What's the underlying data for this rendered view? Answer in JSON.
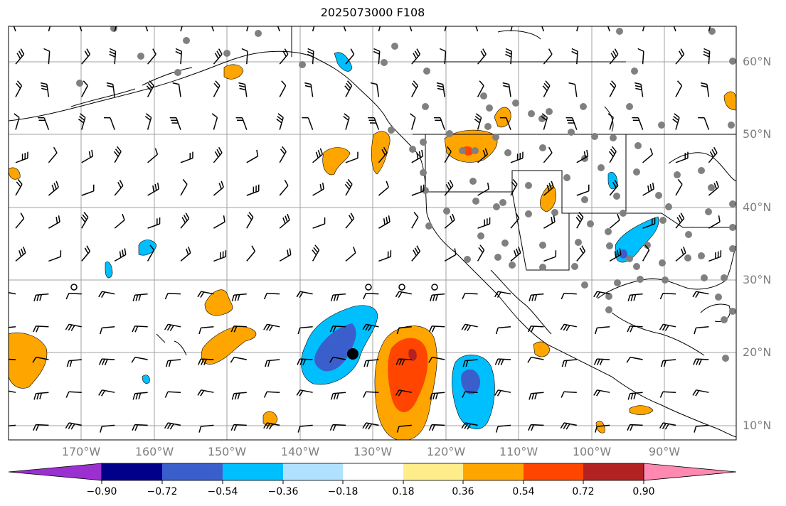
{
  "title": "2025073000 F108",
  "latitude_labels": [
    "60°N",
    "50°N",
    "40°N",
    "30°N",
    "20°N",
    "10°N"
  ],
  "longitude_labels": [
    "170°W",
    "160°W",
    "150°W",
    "140°W",
    "130°W",
    "120°W",
    "110°W",
    "100°W",
    "90°W"
  ],
  "colorbar": {
    "tick_labels": [
      "−0.90",
      "−0.72",
      "−0.54",
      "−0.36",
      "−0.18",
      "0.18",
      "0.36",
      "0.54",
      "0.72",
      "0.90"
    ],
    "colors": [
      "#9b30d0",
      "#00008b",
      "#3a5fcd",
      "#00bfff",
      "#b0e2ff",
      "#ffffff",
      "#ffec8b",
      "#ffa500",
      "#ff4500",
      "#b22222",
      "#ff89b0"
    ]
  },
  "map_colors": {
    "land_outline": "#000000",
    "gridline": "#a0a0a0",
    "station": "#808080"
  }
}
